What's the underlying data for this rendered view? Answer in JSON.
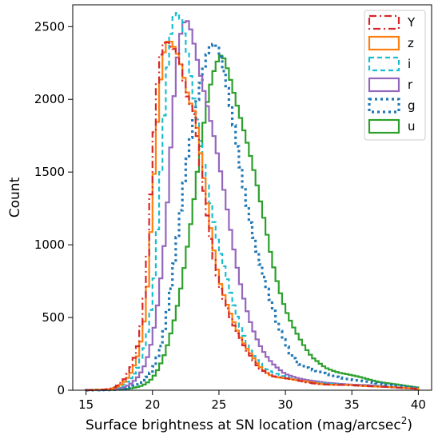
{
  "chart_data": {
    "type": "histogram",
    "xlabel": "Surface brightness at SN location (mag/arcsec",
    "xlabel_sup": "2",
    "xlabel_end": ")",
    "ylabel": "Count",
    "xlim": [
      14,
      41
    ],
    "ylim": [
      0,
      2650
    ],
    "xticks": [
      15,
      20,
      25,
      30,
      35,
      40
    ],
    "yticks": [
      0,
      500,
      1000,
      1500,
      2000,
      2500
    ],
    "bin_width": 0.25,
    "x_start": 15,
    "legend_position": "top-right",
    "grid": false,
    "series": [
      {
        "name": "Y",
        "color": "#d62728",
        "style": "dashdot",
        "peak": 20.9,
        "peak_count": 2510,
        "anchors": [
          [
            15,
            0
          ],
          [
            16.5,
            5
          ],
          [
            17,
            15
          ],
          [
            17.5,
            40
          ],
          [
            18,
            90
          ],
          [
            18.5,
            180
          ],
          [
            19,
            330
          ],
          [
            19.5,
            700
          ],
          [
            19.75,
            1100
          ],
          [
            20,
            1550
          ],
          [
            20.25,
            2000
          ],
          [
            20.5,
            2300
          ],
          [
            20.75,
            2460
          ],
          [
            21,
            2510
          ],
          [
            21.25,
            2470
          ],
          [
            21.5,
            2420
          ],
          [
            21.75,
            2380
          ],
          [
            22,
            2280
          ],
          [
            22.25,
            2150
          ],
          [
            22.5,
            2000
          ],
          [
            22.75,
            1900
          ],
          [
            23,
            1860
          ],
          [
            23.25,
            1800
          ],
          [
            23.5,
            1600
          ],
          [
            23.75,
            1450
          ],
          [
            24,
            1300
          ],
          [
            24.25,
            1150
          ],
          [
            24.5,
            1000
          ],
          [
            24.75,
            880
          ],
          [
            25,
            760
          ],
          [
            25.5,
            600
          ],
          [
            26,
            460
          ],
          [
            26.5,
            350
          ],
          [
            27,
            280
          ],
          [
            27.5,
            220
          ],
          [
            28,
            160
          ],
          [
            28.5,
            130
          ],
          [
            29,
            100
          ],
          [
            30,
            80
          ],
          [
            31,
            65
          ],
          [
            32,
            50
          ],
          [
            33,
            40
          ],
          [
            34,
            35
          ],
          [
            35,
            35
          ],
          [
            36,
            30
          ],
          [
            37,
            25
          ],
          [
            38,
            20
          ],
          [
            39,
            15
          ],
          [
            40,
            10
          ]
        ]
      },
      {
        "name": "z",
        "color": "#ff7f0e",
        "style": "solid",
        "peak": 21.2,
        "peak_count": 2510,
        "anchors": [
          [
            15,
            0
          ],
          [
            16.5,
            5
          ],
          [
            17,
            10
          ],
          [
            17.5,
            30
          ],
          [
            18,
            70
          ],
          [
            18.5,
            140
          ],
          [
            19,
            260
          ],
          [
            19.5,
            520
          ],
          [
            19.75,
            850
          ],
          [
            20,
            1250
          ],
          [
            20.25,
            1650
          ],
          [
            20.5,
            2000
          ],
          [
            20.75,
            2300
          ],
          [
            21,
            2450
          ],
          [
            21.25,
            2510
          ],
          [
            21.5,
            2480
          ],
          [
            21.75,
            2430
          ],
          [
            22,
            2340
          ],
          [
            22.25,
            2220
          ],
          [
            22.5,
            2080
          ],
          [
            22.75,
            1950
          ],
          [
            23,
            1880
          ],
          [
            23.25,
            1820
          ],
          [
            23.5,
            1650
          ],
          [
            23.75,
            1500
          ],
          [
            24,
            1350
          ],
          [
            24.25,
            1200
          ],
          [
            24.5,
            1050
          ],
          [
            24.75,
            920
          ],
          [
            25,
            800
          ],
          [
            25.5,
            640
          ],
          [
            26,
            500
          ],
          [
            26.5,
            370
          ],
          [
            27,
            290
          ],
          [
            27.5,
            230
          ],
          [
            28,
            170
          ],
          [
            28.5,
            130
          ],
          [
            29,
            100
          ],
          [
            30,
            80
          ],
          [
            31,
            65
          ],
          [
            32,
            55
          ],
          [
            33,
            40
          ],
          [
            34,
            35
          ],
          [
            35,
            35
          ],
          [
            36,
            30
          ],
          [
            37,
            25
          ],
          [
            38,
            20
          ],
          [
            39,
            15
          ],
          [
            40,
            10
          ]
        ]
      },
      {
        "name": "i",
        "color": "#17becf",
        "style": "dashed",
        "peak": 21.7,
        "peak_count": 2510,
        "anchors": [
          [
            15,
            0
          ],
          [
            16.5,
            3
          ],
          [
            17,
            8
          ],
          [
            17.5,
            20
          ],
          [
            18,
            45
          ],
          [
            18.5,
            90
          ],
          [
            19,
            170
          ],
          [
            19.5,
            330
          ],
          [
            20,
            650
          ],
          [
            20.25,
            950
          ],
          [
            20.5,
            1350
          ],
          [
            20.75,
            1750
          ],
          [
            21,
            2100
          ],
          [
            21.25,
            2350
          ],
          [
            21.5,
            2480
          ],
          [
            21.75,
            2510
          ],
          [
            22,
            2490
          ],
          [
            22.25,
            2420
          ],
          [
            22.5,
            2320
          ],
          [
            22.75,
            2200
          ],
          [
            23,
            2080
          ],
          [
            23.25,
            1960
          ],
          [
            23.5,
            1850
          ],
          [
            23.75,
            1700
          ],
          [
            24,
            1550
          ],
          [
            24.25,
            1400
          ],
          [
            24.5,
            1250
          ],
          [
            24.75,
            1100
          ],
          [
            25,
            970
          ],
          [
            25.5,
            780
          ],
          [
            26,
            600
          ],
          [
            26.5,
            460
          ],
          [
            27,
            350
          ],
          [
            27.5,
            260
          ],
          [
            28,
            200
          ],
          [
            28.5,
            150
          ],
          [
            29,
            120
          ],
          [
            30,
            90
          ],
          [
            31,
            70
          ],
          [
            32,
            55
          ],
          [
            33,
            45
          ],
          [
            34,
            40
          ],
          [
            35,
            35
          ],
          [
            36,
            30
          ],
          [
            37,
            25
          ],
          [
            38,
            20
          ],
          [
            39,
            15
          ],
          [
            40,
            10
          ]
        ]
      },
      {
        "name": "r",
        "color": "#9467bd",
        "style": "solid",
        "peak": 22.7,
        "peak_count": 2520,
        "anchors": [
          [
            15,
            0
          ],
          [
            16.5,
            2
          ],
          [
            17,
            5
          ],
          [
            17.5,
            12
          ],
          [
            18,
            25
          ],
          [
            18.5,
            50
          ],
          [
            19,
            100
          ],
          [
            19.5,
            190
          ],
          [
            20,
            370
          ],
          [
            20.5,
            680
          ],
          [
            21,
            1100
          ],
          [
            21.25,
            1450
          ],
          [
            21.5,
            1800
          ],
          [
            21.75,
            2100
          ],
          [
            22,
            2300
          ],
          [
            22.25,
            2430
          ],
          [
            22.5,
            2500
          ],
          [
            22.75,
            2520
          ],
          [
            23,
            2470
          ],
          [
            23.25,
            2400
          ],
          [
            23.5,
            2300
          ],
          [
            23.75,
            2200
          ],
          [
            24,
            2080
          ],
          [
            24.25,
            1950
          ],
          [
            24.5,
            1820
          ],
          [
            24.75,
            1680
          ],
          [
            25,
            1530
          ],
          [
            25.5,
            1260
          ],
          [
            26,
            1000
          ],
          [
            26.5,
            780
          ],
          [
            27,
            600
          ],
          [
            27.5,
            450
          ],
          [
            28,
            330
          ],
          [
            28.5,
            240
          ],
          [
            29,
            180
          ],
          [
            29.5,
            140
          ],
          [
            30,
            110
          ],
          [
            31,
            85
          ],
          [
            32,
            65
          ],
          [
            33,
            50
          ],
          [
            34,
            45
          ],
          [
            35,
            40
          ],
          [
            36,
            35
          ],
          [
            37,
            28
          ],
          [
            38,
            22
          ],
          [
            39,
            15
          ],
          [
            40,
            10
          ]
        ]
      },
      {
        "name": "g",
        "color": "#1f77b4",
        "style": "dotted",
        "peak": 24.3,
        "peak_count": 2400,
        "anchors": [
          [
            15,
            0
          ],
          [
            16.5,
            2
          ],
          [
            17,
            3
          ],
          [
            17.5,
            6
          ],
          [
            18,
            12
          ],
          [
            18.5,
            25
          ],
          [
            19,
            45
          ],
          [
            19.5,
            80
          ],
          [
            20,
            140
          ],
          [
            20.5,
            260
          ],
          [
            21,
            450
          ],
          [
            21.5,
            750
          ],
          [
            22,
            1100
          ],
          [
            22.5,
            1500
          ],
          [
            23,
            1850
          ],
          [
            23.25,
            2000
          ],
          [
            23.5,
            2150
          ],
          [
            23.75,
            2250
          ],
          [
            24,
            2330
          ],
          [
            24.25,
            2400
          ],
          [
            24.5,
            2380
          ],
          [
            24.75,
            2340
          ],
          [
            25,
            2260
          ],
          [
            25.25,
            2170
          ],
          [
            25.5,
            2050
          ],
          [
            25.75,
            1950
          ],
          [
            26,
            1850
          ],
          [
            26.5,
            1620
          ],
          [
            27,
            1380
          ],
          [
            27.5,
            1140
          ],
          [
            28,
            920
          ],
          [
            28.5,
            720
          ],
          [
            29,
            560
          ],
          [
            29.5,
            420
          ],
          [
            30,
            320
          ],
          [
            30.5,
            240
          ],
          [
            31,
            190
          ],
          [
            32,
            140
          ],
          [
            33,
            110
          ],
          [
            34,
            90
          ],
          [
            35,
            75
          ],
          [
            36,
            60
          ],
          [
            37,
            45
          ],
          [
            38,
            35
          ],
          [
            39,
            25
          ],
          [
            40,
            15
          ]
        ]
      },
      {
        "name": "u",
        "color": "#2ca02c",
        "style": "solid",
        "peak": 25.2,
        "peak_count": 2320,
        "anchors": [
          [
            15,
            0
          ],
          [
            16.5,
            1
          ],
          [
            17,
            2
          ],
          [
            17.5,
            4
          ],
          [
            18,
            8
          ],
          [
            18.5,
            15
          ],
          [
            19,
            25
          ],
          [
            19.5,
            45
          ],
          [
            20,
            80
          ],
          [
            20.5,
            150
          ],
          [
            21,
            260
          ],
          [
            21.5,
            430
          ],
          [
            22,
            650
          ],
          [
            22.5,
            950
          ],
          [
            23,
            1250
          ],
          [
            23.5,
            1580
          ],
          [
            24,
            1850
          ],
          [
            24.5,
            2080
          ],
          [
            25,
            2260
          ],
          [
            25.25,
            2320
          ],
          [
            25.5,
            2300
          ],
          [
            25.75,
            2250
          ],
          [
            26,
            2180
          ],
          [
            26.25,
            2080
          ],
          [
            26.5,
            1980
          ],
          [
            27,
            1750
          ],
          [
            27.5,
            1520
          ],
          [
            28,
            1300
          ],
          [
            28.5,
            1100
          ],
          [
            29,
            900
          ],
          [
            29.5,
            730
          ],
          [
            30,
            580
          ],
          [
            30.5,
            460
          ],
          [
            31,
            360
          ],
          [
            31.5,
            280
          ],
          [
            32,
            220
          ],
          [
            33,
            160
          ],
          [
            34,
            125
          ],
          [
            35,
            100
          ],
          [
            36,
            80
          ],
          [
            37,
            60
          ],
          [
            38,
            45
          ],
          [
            39,
            30
          ],
          [
            40,
            18
          ]
        ]
      }
    ]
  }
}
